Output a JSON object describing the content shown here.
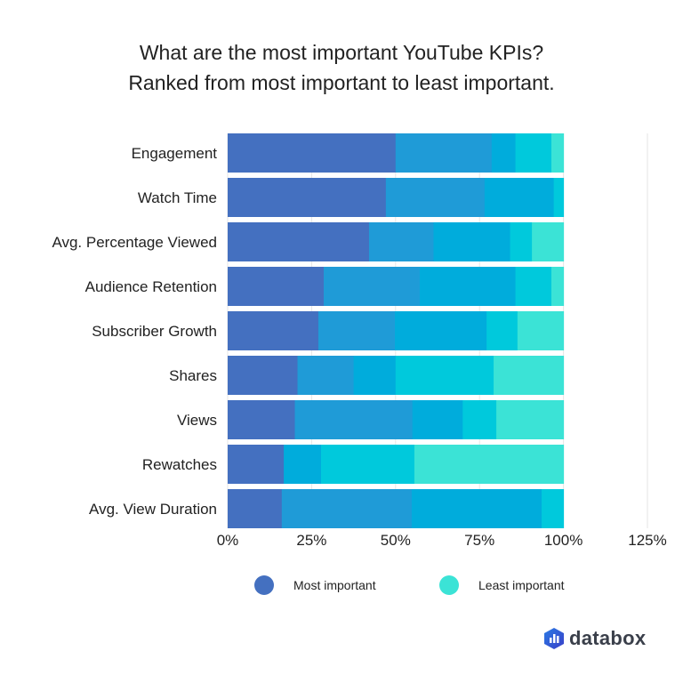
{
  "chart_data": {
    "type": "bar",
    "orientation": "horizontal",
    "stacked": true,
    "title": "What are the most important YouTube KPIs?",
    "subtitle": "Ranked from most important to least important.",
    "categories": [
      "Engagement",
      "Watch Time",
      "Avg. Percentage Viewed",
      "Audience Retention",
      "Subscriber Growth",
      "Shares",
      "Views",
      "Rewatches",
      "Avg. View Duration"
    ],
    "series": [
      {
        "name": "Most important",
        "color": "#4470c0",
        "values": [
          50.0,
          47.1,
          42.1,
          28.6,
          27.0,
          20.8,
          20.0,
          16.7,
          16.1
        ]
      },
      {
        "color": "#1f9bd7",
        "values": [
          28.6,
          29.4,
          19.2,
          28.6,
          22.8,
          16.7,
          35.0,
          0,
          38.7
        ]
      },
      {
        "color": "#00acdc",
        "values": [
          7.1,
          20.6,
          22.8,
          28.5,
          27.3,
          12.5,
          15.0,
          11.1,
          38.7
        ]
      },
      {
        "color": "#00c9dc",
        "values": [
          10.7,
          2.9,
          6.5,
          10.7,
          9.2,
          29.2,
          10.0,
          27.8,
          6.5
        ]
      },
      {
        "name": "Least important",
        "color": "#3be3d6",
        "values": [
          3.6,
          0,
          9.4,
          3.6,
          13.7,
          20.8,
          20.0,
          44.4,
          0
        ]
      }
    ],
    "xlim": [
      0,
      125
    ],
    "x_ticks": [
      "0%",
      "25%",
      "50%",
      "75%",
      "100%",
      "125%"
    ],
    "grid": true,
    "legend_position": "bottom"
  },
  "legend": [
    "Most important",
    "Least important"
  ],
  "logo": {
    "text": "databox"
  }
}
